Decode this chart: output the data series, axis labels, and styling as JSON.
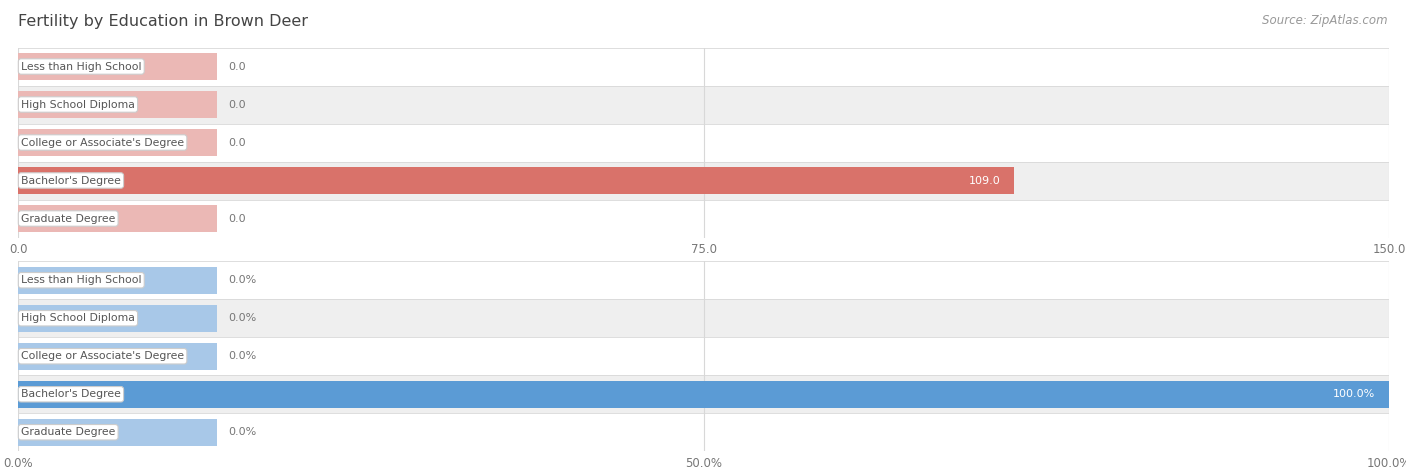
{
  "title": "Fertility by Education in Brown Deer",
  "source": "Source: ZipAtlas.com",
  "background_color": "#ffffff",
  "top_chart": {
    "categories": [
      "Less than High School",
      "High School Diploma",
      "College or Associate's Degree",
      "Bachelor's Degree",
      "Graduate Degree"
    ],
    "values": [
      0.0,
      0.0,
      0.0,
      109.0,
      0.0
    ],
    "bar_color_active": "#d9726a",
    "bar_color_inactive": "#ebb8b5",
    "xlim": [
      0,
      150
    ],
    "xticks": [
      0.0,
      75.0,
      150.0
    ],
    "is_percent": false
  },
  "bottom_chart": {
    "categories": [
      "Less than High School",
      "High School Diploma",
      "College or Associate's Degree",
      "Bachelor's Degree",
      "Graduate Degree"
    ],
    "values": [
      0.0,
      0.0,
      0.0,
      100.0,
      0.0
    ],
    "bar_color_active": "#5b9bd5",
    "bar_color_inactive": "#a8c8e8",
    "xlim": [
      0,
      100
    ],
    "xticks": [
      0.0,
      50.0,
      100.0
    ],
    "is_percent": true
  },
  "row_colors": [
    "#ffffff",
    "#efefef"
  ],
  "grid_color": "#d8d8d8",
  "label_box_bg": "#ffffff",
  "label_box_edge": "#cccccc",
  "tick_color": "#777777",
  "title_color": "#444444",
  "source_color": "#999999",
  "value_label_color_inside": "#ffffff",
  "value_label_color_outside": "#777777"
}
